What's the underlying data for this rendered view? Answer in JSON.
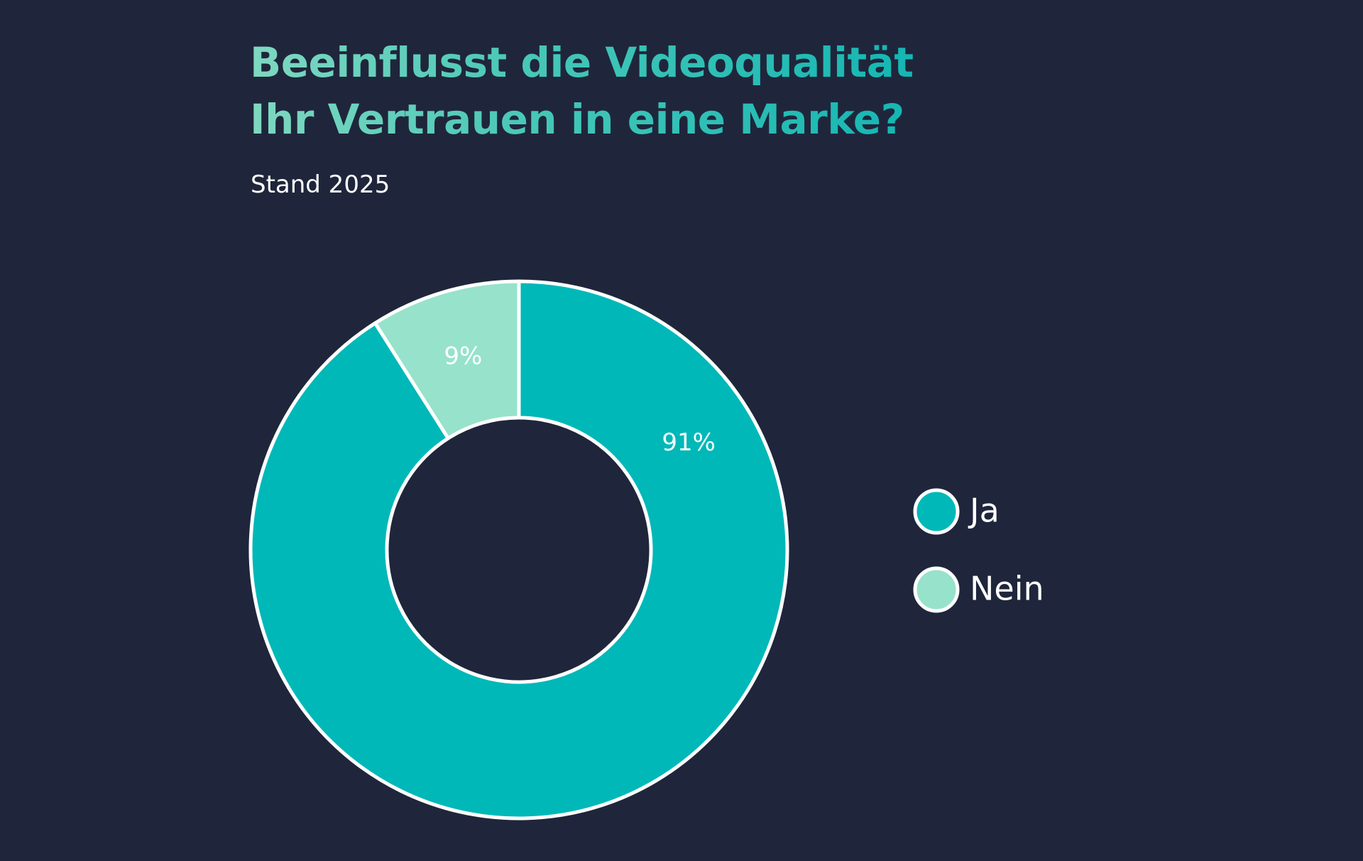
{
  "chart_data": {
    "type": "pie",
    "title_lines": [
      "Beeinflusst die Videoqualität",
      "Ihr Vertrauen in eine Marke?"
    ],
    "subtitle": "Stand 2025",
    "donut": true,
    "categories": [
      "Ja",
      "Nein"
    ],
    "values": [
      91,
      9
    ],
    "data_labels": [
      "91%",
      "9%"
    ],
    "colors": [
      "#00b8b8",
      "#97e2cb"
    ],
    "legend": {
      "placement": "right",
      "entries": [
        "Ja",
        "Nein"
      ]
    }
  },
  "colors": {
    "background": "#1f263b",
    "slice_border": "#ffffff",
    "title_accent": "#2dc0b6"
  }
}
